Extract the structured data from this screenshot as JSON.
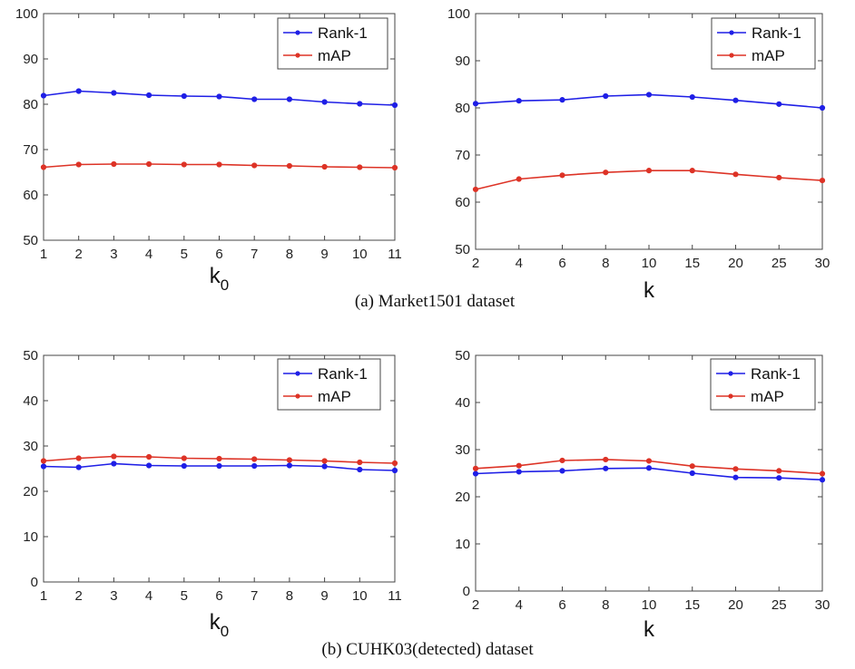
{
  "captions": {
    "top": "(a) Market1501 dataset",
    "bottom": "(b) CUHK03(detected) dataset"
  },
  "colors": {
    "rank1": "#1f1fe6",
    "map": "#dd3326"
  },
  "chart_data": [
    {
      "type": "line",
      "xlabel": "k",
      "xlabel_sub": "0",
      "categories": [
        "1",
        "2",
        "3",
        "4",
        "5",
        "6",
        "7",
        "8",
        "9",
        "10",
        "11"
      ],
      "ylim": [
        50,
        100
      ],
      "yticks": [
        "50",
        "60",
        "70",
        "80",
        "90",
        "100"
      ],
      "legend": "top-right",
      "series": [
        {
          "name": "Rank-1",
          "values": [
            81.9,
            82.9,
            82.5,
            82.0,
            81.8,
            81.7,
            81.1,
            81.1,
            80.5,
            80.1,
            79.8
          ]
        },
        {
          "name": "mAP",
          "values": [
            66.1,
            66.7,
            66.8,
            66.8,
            66.7,
            66.7,
            66.5,
            66.4,
            66.2,
            66.1,
            66.0
          ]
        }
      ]
    },
    {
      "type": "line",
      "xlabel": "k",
      "xlabel_sub": "",
      "categories": [
        "2",
        "4",
        "6",
        "8",
        "10",
        "15",
        "20",
        "25",
        "30"
      ],
      "ylim": [
        50,
        100
      ],
      "yticks": [
        "50",
        "60",
        "70",
        "80",
        "90",
        "100"
      ],
      "legend": "top-right",
      "series": [
        {
          "name": "Rank-1",
          "values": [
            80.9,
            81.5,
            81.7,
            82.5,
            82.8,
            82.3,
            81.6,
            80.8,
            80.0
          ]
        },
        {
          "name": "mAP",
          "values": [
            62.7,
            64.9,
            65.7,
            66.3,
            66.7,
            66.7,
            65.9,
            65.2,
            64.6
          ]
        }
      ]
    },
    {
      "type": "line",
      "xlabel": "k",
      "xlabel_sub": "0",
      "categories": [
        "1",
        "2",
        "3",
        "4",
        "5",
        "6",
        "7",
        "8",
        "9",
        "10",
        "11"
      ],
      "ylim": [
        0,
        50
      ],
      "yticks": [
        "0",
        "10",
        "20",
        "30",
        "40",
        "50"
      ],
      "legend": "top-right",
      "series": [
        {
          "name": "Rank-1",
          "values": [
            25.5,
            25.3,
            26.1,
            25.7,
            25.6,
            25.6,
            25.6,
            25.7,
            25.5,
            24.8,
            24.6
          ]
        },
        {
          "name": "mAP",
          "values": [
            26.7,
            27.3,
            27.7,
            27.6,
            27.3,
            27.2,
            27.1,
            26.9,
            26.7,
            26.4,
            26.2
          ]
        }
      ]
    },
    {
      "type": "line",
      "xlabel": "k",
      "xlabel_sub": "",
      "categories": [
        "2",
        "4",
        "6",
        "8",
        "10",
        "15",
        "20",
        "25",
        "30"
      ],
      "ylim": [
        0,
        50
      ],
      "yticks": [
        "0",
        "10",
        "20",
        "30",
        "40",
        "50"
      ],
      "legend": "top-right",
      "series": [
        {
          "name": "Rank-1",
          "values": [
            24.9,
            25.3,
            25.5,
            26.0,
            26.1,
            25.0,
            24.1,
            24.0,
            23.6
          ]
        },
        {
          "name": "mAP",
          "values": [
            26.0,
            26.6,
            27.7,
            27.9,
            27.6,
            26.5,
            25.9,
            25.5,
            24.9
          ]
        }
      ]
    }
  ]
}
